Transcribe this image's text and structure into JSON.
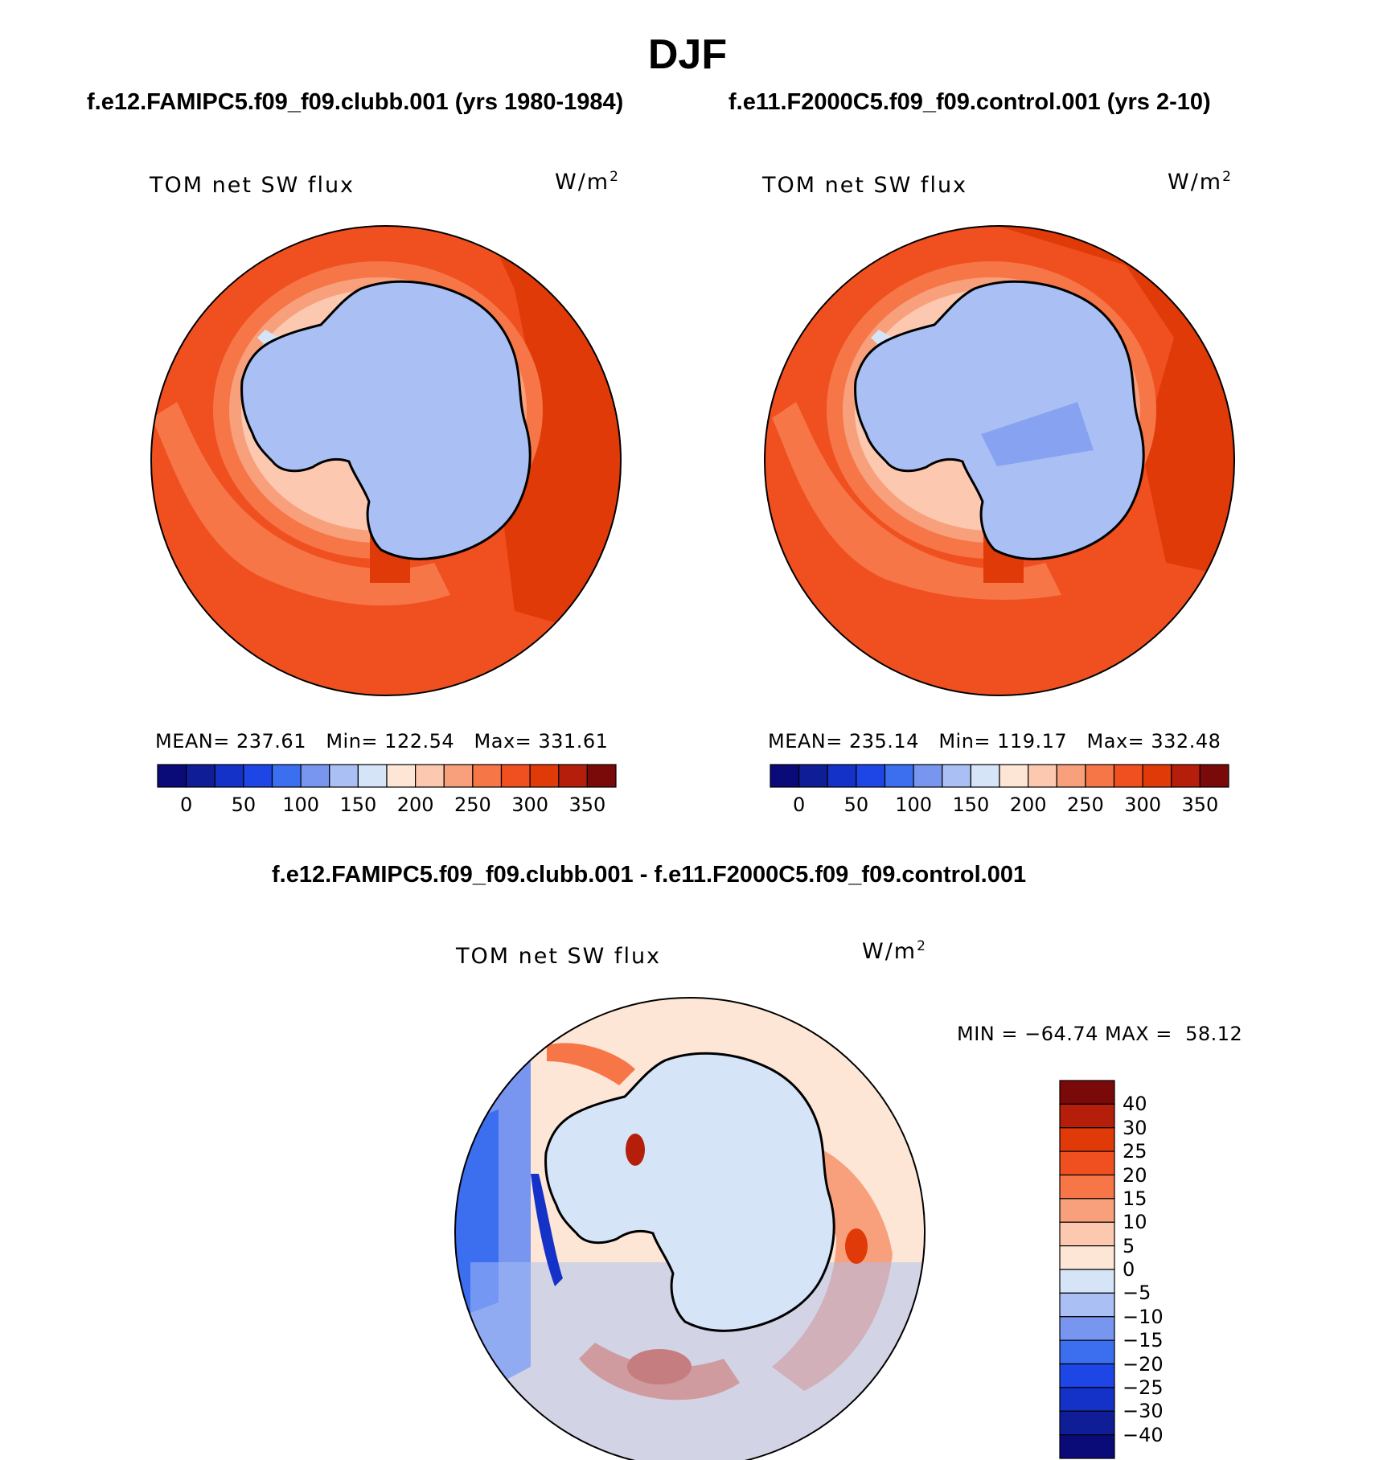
{
  "figure": {
    "season": "DJF",
    "diff_title": "f.e12.FAMIPC5.f09_f09.clubb.001 - f.e11.F2000C5.f09_f09.control.001"
  },
  "panels": [
    {
      "case_title": "f.e12.FAMIPC5.f09_f09.clubb.001 (yrs 1980-1984)",
      "variable": "TOM net SW flux",
      "units": "W/m",
      "units_sup": "2",
      "stats": "MEAN= 237.61   Min= 122.54   Max= 331.61"
    },
    {
      "case_title": "f.e11.F2000C5.f09_f09.control.001 (yrs 2-10)",
      "variable": "TOM net SW flux",
      "units": "W/m",
      "units_sup": "2",
      "stats": "MEAN= 235.14   Min= 119.17   Max= 332.48"
    },
    {
      "variable": "TOM net SW flux",
      "units": "W/m",
      "units_sup": "2",
      "stats": "MIN = −64.74 MAX =  58.12"
    }
  ],
  "colorbars": {
    "abs": {
      "ticks": [
        "0",
        "50",
        "100",
        "150",
        "200",
        "250",
        "300",
        "350"
      ],
      "colors": [
        "#0a0a78",
        "#0f1e96",
        "#1432c8",
        "#1e46e6",
        "#3c6ef0",
        "#7896f0",
        "#aac0f5",
        "#d6e4f8",
        "#fde6d6",
        "#fcc8b0",
        "#f8a07c",
        "#f67648",
        "#f05020",
        "#e03a08",
        "#b41e0a",
        "#7a0a0a"
      ]
    },
    "diff": {
      "ticks": [
        "40",
        "30",
        "25",
        "20",
        "15",
        "10",
        "5",
        "0",
        "−5",
        "−10",
        "−15",
        "−20",
        "−25",
        "−30",
        "−40"
      ],
      "colors": [
        "#7a0a0a",
        "#b41e0a",
        "#e03a08",
        "#f05020",
        "#f67648",
        "#f8a07c",
        "#fcc8b0",
        "#fde6d6",
        "#d6e4f8",
        "#aac0f5",
        "#7896f0",
        "#3c6ef0",
        "#1e46e6",
        "#1432c8",
        "#0f1e96",
        "#0a0a78"
      ]
    }
  },
  "map_colors": {
    "ocean_high": "#f05020",
    "ocean_very_high": "#e03a08",
    "ocean_mid": "#f67648",
    "sea_ice_edge": "#f8a07c",
    "ice_margin": "#fcc8b0",
    "ice_light": "#fde6d6",
    "ice_pale": "#d6e4f8",
    "continent": "#aac0f5",
    "continent_low": "#7896f0"
  }
}
